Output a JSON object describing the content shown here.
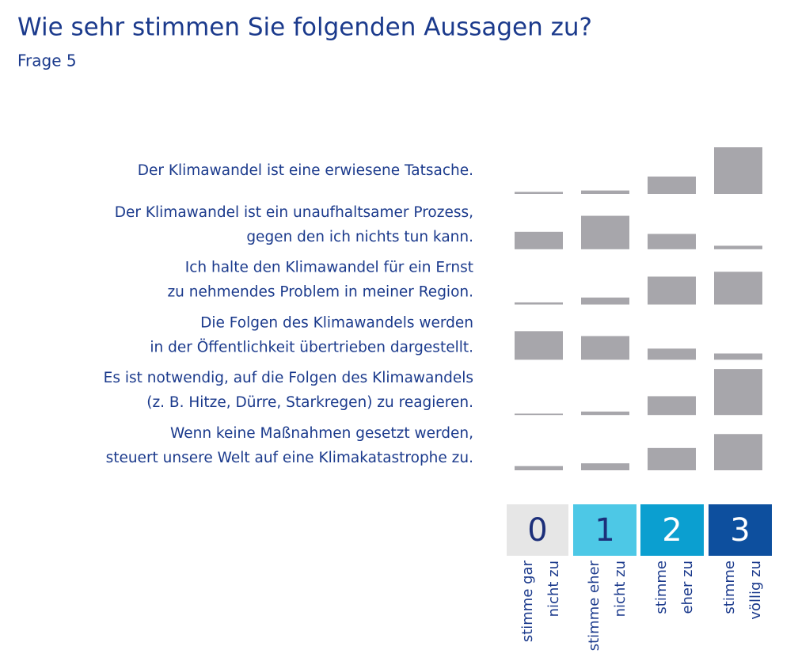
{
  "chart_data": {
    "type": "bar",
    "title": "Wie sehr stimmen Sie folgenden Aussagen zu?",
    "subtitle": "Frage 5",
    "categories": [
      [
        "Der Klimawandel ist eine erwiesene Tatsache."
      ],
      [
        "Der Klimawandel ist ein unaufhaltsamer Prozess,",
        "gegen den ich nichts tun kann."
      ],
      [
        "Ich halte den Klimawandel für ein Ernst",
        "zu nehmendes Problem in meiner Region."
      ],
      [
        "Die Folgen des Klimawandels werden",
        "in der Öffentlichkeit übertrieben dargestellt."
      ],
      [
        "Es ist notwendig, auf die Folgen des Klimawandels",
        "(z. B. Hitze, Dürre, Starkregen) zu reagieren."
      ],
      [
        "Wenn keine Maßnahmen gesetzt werden,",
        "steuert unsere Welt auf eine Klimakatastrophe zu."
      ]
    ],
    "bar_color": "#a7a6ab",
    "ylim": [
      0,
      100
    ],
    "series": [
      {
        "name": "0",
        "description": [
          "stimme gar",
          "nicht zu"
        ],
        "color": "#e6e6e6",
        "text_color": "#1c2f7a",
        "values": [
          3,
          25,
          3,
          41,
          2,
          6
        ]
      },
      {
        "name": "1",
        "description": [
          "stimme eher",
          "nicht zu"
        ],
        "color": "#4dc8e6",
        "text_color": "#1c2f7a",
        "values": [
          5,
          48,
          10,
          34,
          5,
          10
        ]
      },
      {
        "name": "2",
        "description": [
          "stimme",
          "eher zu"
        ],
        "color": "#0b9fd0",
        "text_color": "#ffffff",
        "values": [
          25,
          22,
          40,
          16,
          27,
          32
        ]
      },
      {
        "name": "3",
        "description": [
          "stimme",
          "völlig zu"
        ],
        "color": "#0d4f9e",
        "text_color": "#ffffff",
        "values": [
          67,
          5,
          47,
          9,
          66,
          52
        ]
      }
    ]
  }
}
